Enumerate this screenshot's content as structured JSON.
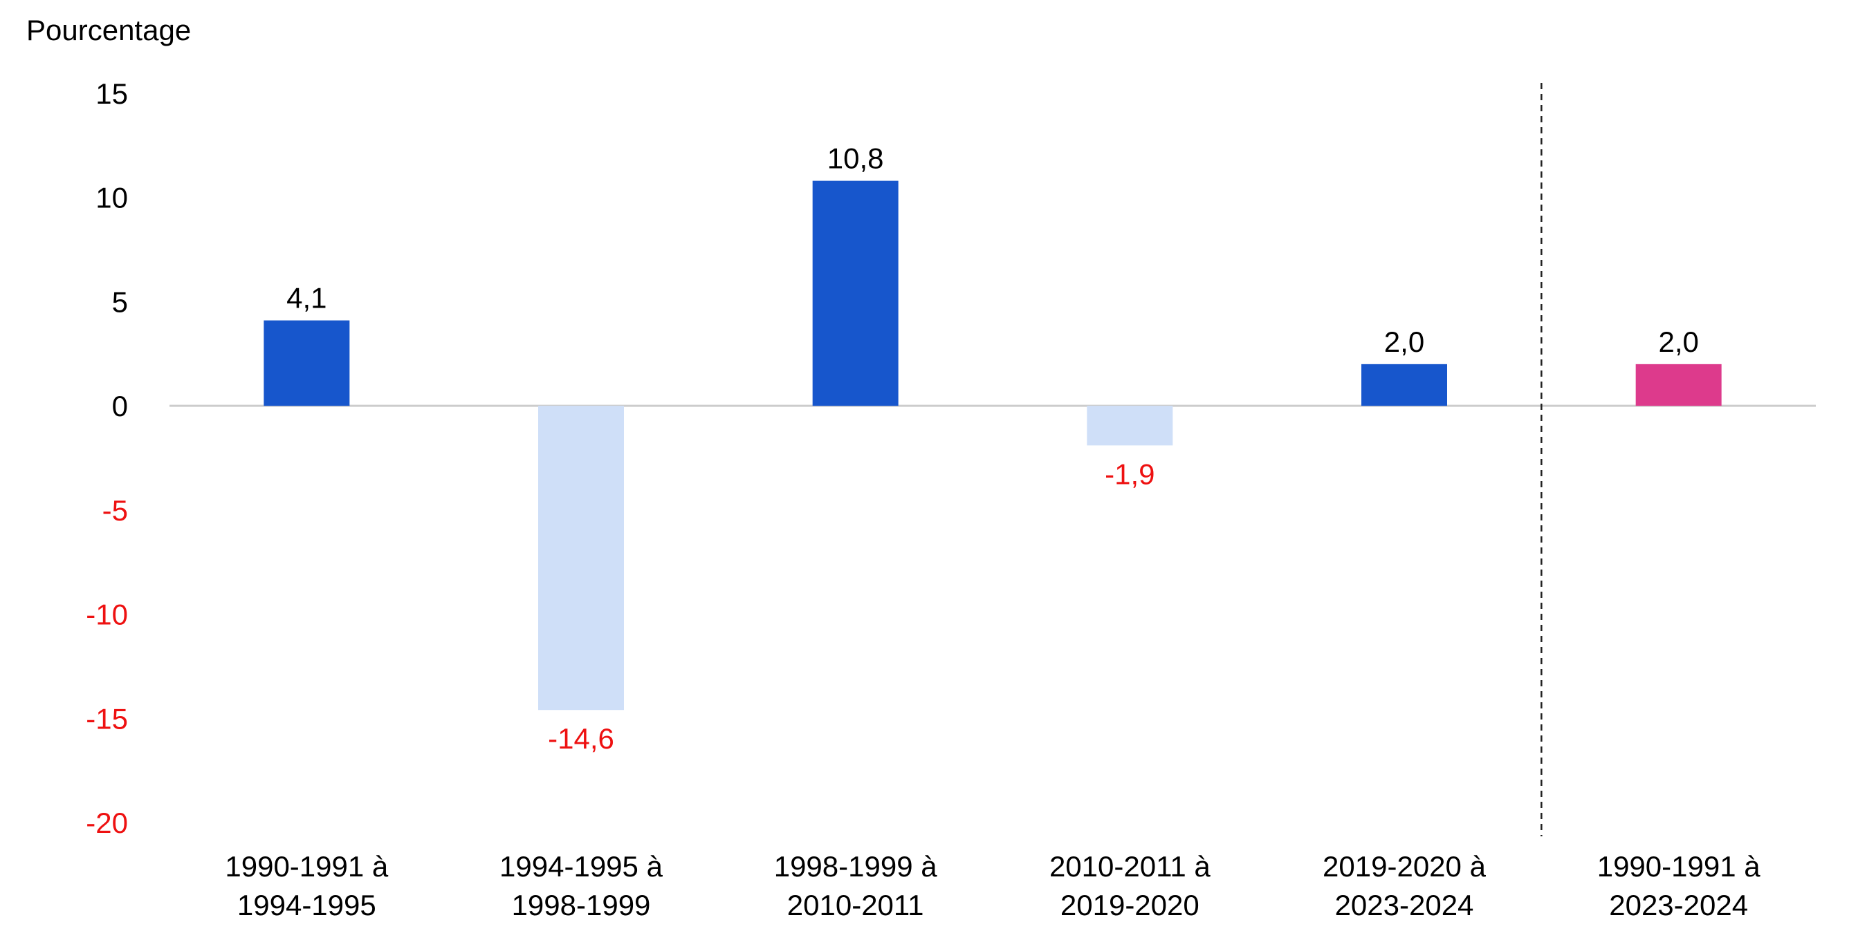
{
  "chart_data": {
    "type": "bar",
    "ylabel": "Pourcentage",
    "ylim": [
      -20,
      15
    ],
    "yticks": [
      15,
      10,
      5,
      0,
      -5,
      -10,
      -15,
      -20
    ],
    "categories": [
      [
        "1990-1991 à",
        "1994-1995"
      ],
      [
        "1994-1995 à",
        "1998-1999"
      ],
      [
        "1998-1999 à",
        "2010-2011"
      ],
      [
        "2010-2011 à",
        "2019-2020"
      ],
      [
        "2019-2020 à",
        "2023-2024"
      ],
      [
        "1990-1991 à",
        "2023-2024"
      ]
    ],
    "values": [
      4.1,
      -14.6,
      10.8,
      -1.9,
      2.0,
      2.0
    ],
    "value_labels": [
      "4,1",
      "-14,6",
      "10,8",
      "-1,9",
      "2,0",
      "2,0"
    ],
    "bar_colors": [
      "#1756cc",
      "#cfdff8",
      "#1756cc",
      "#cfdff8",
      "#1756cc",
      "#dd3a8c"
    ],
    "negative_text_color": "#ee1111",
    "positive_text_color": "#000000",
    "separator_after_category": 5,
    "grid": false
  }
}
